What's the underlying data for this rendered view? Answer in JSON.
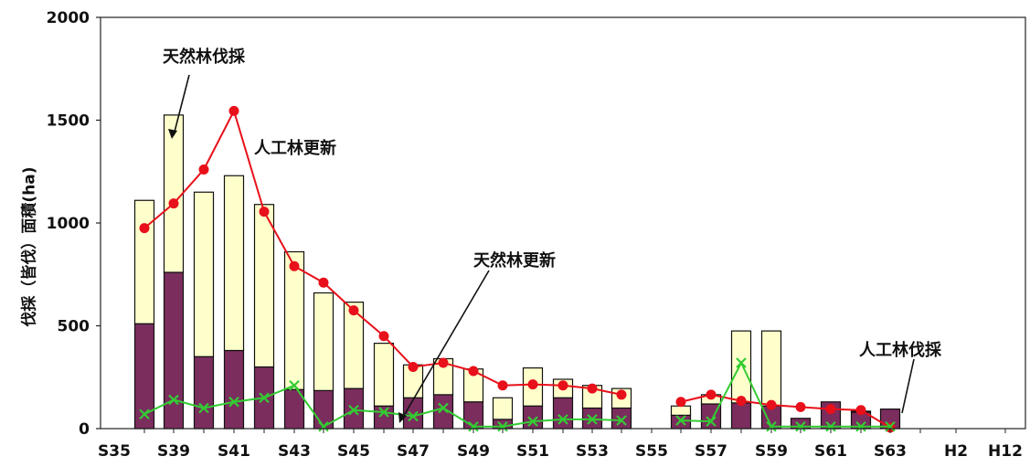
{
  "chart_data": {
    "type": "bar",
    "ylabel": "伐採（皆伐）面積(ha)",
    "ylim": [
      0,
      2000
    ],
    "yticks": [
      0,
      500,
      1000,
      1500,
      2000
    ],
    "xticks": [
      "S35",
      "S39",
      "S41",
      "S43",
      "S45",
      "S47",
      "S49",
      "S51",
      "S53",
      "S55",
      "S57",
      "S59",
      "S61",
      "S63",
      "H2",
      "H12"
    ],
    "categories": [
      "S38",
      "S39",
      "S40",
      "S41",
      "S42",
      "S43",
      "S44",
      "S45",
      "S46",
      "S47",
      "S48",
      "S49",
      "S50",
      "S51",
      "S52",
      "S53",
      "S54",
      "S55",
      "S56",
      "S57",
      "S58",
      "S59",
      "S60",
      "S61",
      "S62",
      "S63",
      "H1",
      "H2",
      "H12"
    ],
    "series": [
      {
        "name": "人工林伐採",
        "kind": "bar-bottom",
        "color": "#7b2d5e",
        "values": [
          510,
          760,
          350,
          380,
          300,
          190,
          185,
          195,
          110,
          150,
          165,
          130,
          45,
          110,
          150,
          100,
          100,
          null,
          65,
          120,
          125,
          110,
          50,
          130,
          80,
          95,
          null,
          null,
          null
        ]
      },
      {
        "name": "天然林伐採",
        "kind": "bar-top",
        "color": "#ffffcc",
        "values": [
          600,
          765,
          800,
          850,
          790,
          670,
          475,
          420,
          305,
          160,
          175,
          160,
          105,
          185,
          90,
          110,
          95,
          null,
          45,
          45,
          350,
          365,
          0,
          0,
          5,
          0,
          null,
          null,
          null
        ]
      },
      {
        "name": "人工林更新",
        "kind": "line",
        "color": "#e8101a",
        "values": [
          975,
          1095,
          1260,
          1545,
          1055,
          790,
          710,
          575,
          450,
          300,
          320,
          280,
          210,
          215,
          210,
          195,
          165,
          null,
          130,
          165,
          135,
          115,
          105,
          95,
          90,
          5,
          null,
          null,
          null
        ]
      },
      {
        "name": "天然林更新",
        "kind": "line",
        "color": "#33cc33",
        "values": [
          70,
          140,
          100,
          130,
          150,
          210,
          10,
          90,
          80,
          60,
          100,
          10,
          10,
          35,
          45,
          45,
          40,
          null,
          40,
          35,
          320,
          10,
          10,
          10,
          10,
          10,
          null,
          null,
          null
        ]
      }
    ],
    "annotations": [
      {
        "text": "天然林伐採"
      },
      {
        "text": "人工林更新"
      },
      {
        "text": "天然林更新"
      },
      {
        "text": "人工林伐採"
      }
    ]
  }
}
